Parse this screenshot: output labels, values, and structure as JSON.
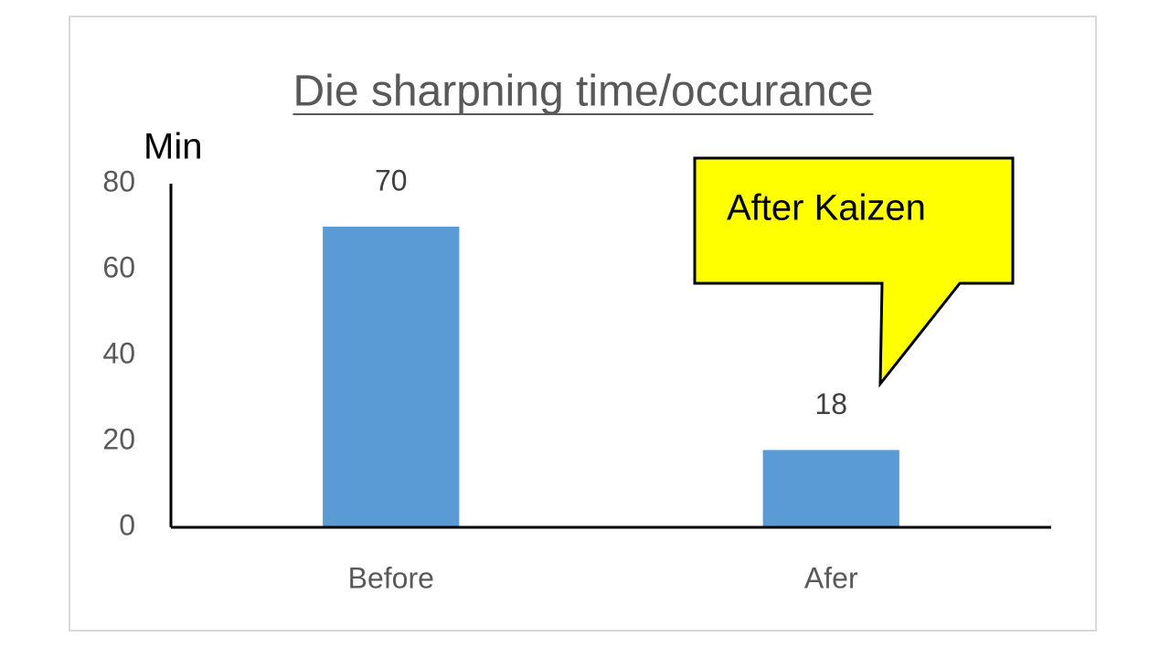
{
  "chart_data": {
    "type": "bar",
    "title": "Die sharpning time/occurance",
    "y_axis_label": "Min",
    "categories": [
      "Before",
      "Afer"
    ],
    "values": [
      70,
      18
    ],
    "color": "#5b9bd5",
    "ylim": [
      0,
      80
    ],
    "yticks": [
      0,
      20,
      40,
      60,
      80
    ],
    "grid": false,
    "annotation": "After Kaizen"
  }
}
